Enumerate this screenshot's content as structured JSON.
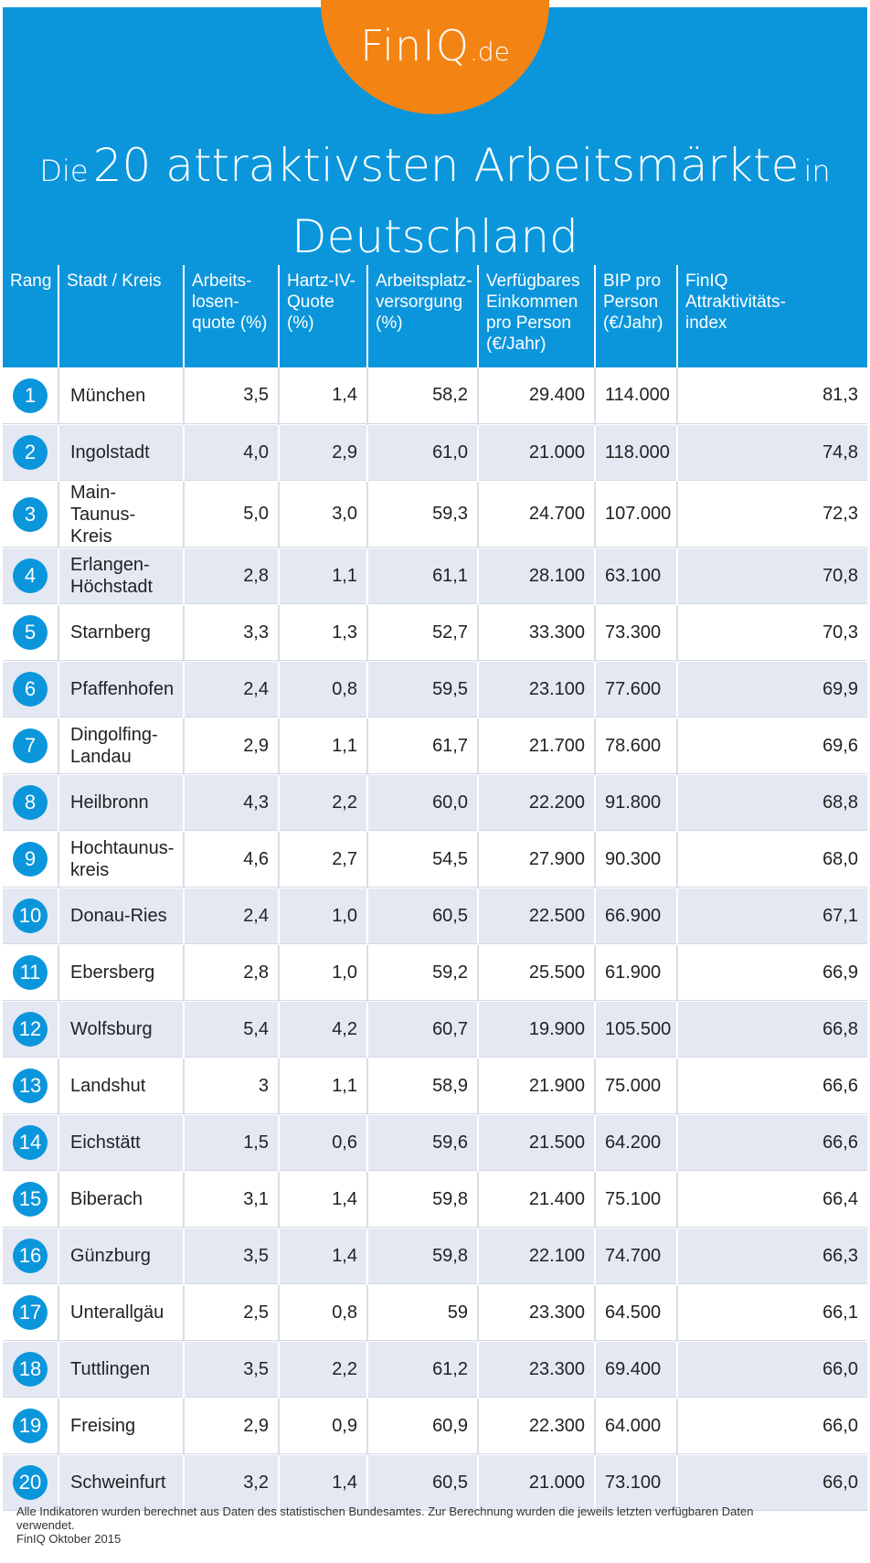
{
  "logo": {
    "brand": "FinIQ",
    "tld": ".de"
  },
  "title": {
    "prefix": "Die",
    "main": "20 attraktivsten Arbeitsmärkte",
    "connector": "in",
    "line2": "Deutschland"
  },
  "colors": {
    "header_blue": "#0b96dc",
    "logo_orange": "#f38313",
    "row_alt": "#e4e8f3"
  },
  "columns": [
    "Rang",
    "Stadt / Kreis",
    "Arbeits-losen-quote (%)",
    "Hartz-IV-Quote (%)",
    "Arbeitsplatz-versorgung (%)",
    "Verfügbares Einkommen pro Person (€/Jahr)",
    "BIP pro Person (€/Jahr)",
    "FinIQ Attraktivitäts-index"
  ],
  "column_lines": [
    [
      "Rang"
    ],
    [
      "Stadt / Kreis"
    ],
    [
      "Arbeits-",
      "losen-",
      "quote (%)"
    ],
    [
      "Hartz-IV-",
      "Quote (%)"
    ],
    [
      "Arbeitsplatz-",
      "versorgung",
      "(%)"
    ],
    [
      "Verfügbares",
      "Einkommen",
      "pro Person",
      "(€/Jahr)"
    ],
    [
      "BIP pro",
      "Person",
      "(€/Jahr)"
    ],
    [
      "FinIQ",
      "Attraktivitäts-",
      "index"
    ]
  ],
  "rows": [
    {
      "rank": "1",
      "name": [
        "München"
      ],
      "alq": "3,5",
      "h4": "1,4",
      "apv": "58,2",
      "eink": "29.400",
      "bip": "114.000",
      "index": "81,3"
    },
    {
      "rank": "2",
      "name": [
        "Ingolstadt"
      ],
      "alq": "4,0",
      "h4": "2,9",
      "apv": "61,0",
      "eink": "21.000",
      "bip": "118.000",
      "index": "74,8"
    },
    {
      "rank": "3",
      "name": [
        "Main-",
        "Taunus-Kreis"
      ],
      "alq": "5,0",
      "h4": "3,0",
      "apv": "59,3",
      "eink": "24.700",
      "bip": "107.000",
      "index": "72,3"
    },
    {
      "rank": "4",
      "name": [
        "Erlangen-",
        "Höchstadt"
      ],
      "alq": "2,8",
      "h4": "1,1",
      "apv": "61,1",
      "eink": "28.100",
      "bip": "63.100",
      "index": "70,8"
    },
    {
      "rank": "5",
      "name": [
        "Starnberg"
      ],
      "alq": "3,3",
      "h4": "1,3",
      "apv": "52,7",
      "eink": "33.300",
      "bip": "73.300",
      "index": "70,3"
    },
    {
      "rank": "6",
      "name": [
        "Pfaffenhofen"
      ],
      "alq": "2,4",
      "h4": "0,8",
      "apv": "59,5",
      "eink": "23.100",
      "bip": "77.600",
      "index": "69,9"
    },
    {
      "rank": "7",
      "name": [
        "Dingolfing-",
        "Landau"
      ],
      "alq": "2,9",
      "h4": "1,1",
      "apv": "61,7",
      "eink": "21.700",
      "bip": "78.600",
      "index": "69,6"
    },
    {
      "rank": "8",
      "name": [
        "Heilbronn"
      ],
      "alq": "4,3",
      "h4": "2,2",
      "apv": "60,0",
      "eink": "22.200",
      "bip": "91.800",
      "index": "68,8"
    },
    {
      "rank": "9",
      "name": [
        "Hochtaunus-",
        "kreis"
      ],
      "alq": "4,6",
      "h4": "2,7",
      "apv": "54,5",
      "eink": "27.900",
      "bip": "90.300",
      "index": "68,0"
    },
    {
      "rank": "10",
      "name": [
        "Donau-Ries"
      ],
      "alq": "2,4",
      "h4": "1,0",
      "apv": "60,5",
      "eink": "22.500",
      "bip": "66.900",
      "index": "67,1"
    },
    {
      "rank": "11",
      "name": [
        "Ebersberg"
      ],
      "alq": "2,8",
      "h4": "1,0",
      "apv": "59,2",
      "eink": "25.500",
      "bip": "61.900",
      "index": "66,9"
    },
    {
      "rank": "12",
      "name": [
        "Wolfsburg"
      ],
      "alq": "5,4",
      "h4": "4,2",
      "apv": "60,7",
      "eink": "19.900",
      "bip": "105.500",
      "index": "66,8"
    },
    {
      "rank": "13",
      "name": [
        "Landshut"
      ],
      "alq": "3",
      "h4": "1,1",
      "apv": "58,9",
      "eink": "21.900",
      "bip": "75.000",
      "index": "66,6"
    },
    {
      "rank": "14",
      "name": [
        "Eichstätt"
      ],
      "alq": "1,5",
      "h4": "0,6",
      "apv": "59,6",
      "eink": "21.500",
      "bip": "64.200",
      "index": "66,6"
    },
    {
      "rank": "15",
      "name": [
        "Biberach"
      ],
      "alq": "3,1",
      "h4": "1,4",
      "apv": "59,8",
      "eink": "21.400",
      "bip": "75.100",
      "index": "66,4"
    },
    {
      "rank": "16",
      "name": [
        "Günzburg"
      ],
      "alq": "3,5",
      "h4": "1,4",
      "apv": "59,8",
      "eink": "22.100",
      "bip": "74.700",
      "index": "66,3"
    },
    {
      "rank": "17",
      "name": [
        "Unterallgäu"
      ],
      "alq": "2,5",
      "h4": "0,8",
      "apv": "59",
      "eink": "23.300",
      "bip": "64.500",
      "index": "66,1"
    },
    {
      "rank": "18",
      "name": [
        "Tuttlingen"
      ],
      "alq": "3,5",
      "h4": "2,2",
      "apv": "61,2",
      "eink": "23.300",
      "bip": "69.400",
      "index": "66,0"
    },
    {
      "rank": "19",
      "name": [
        "Freising"
      ],
      "alq": "2,9",
      "h4": "0,9",
      "apv": "60,9",
      "eink": "22.300",
      "bip": "64.000",
      "index": "66,0"
    },
    {
      "rank": "20",
      "name": [
        "Schweinfurt"
      ],
      "alq": "3,2",
      "h4": "1,4",
      "apv": "60,5",
      "eink": "21.000",
      "bip": "73.100",
      "index": "66,0"
    }
  ],
  "footer": {
    "note_line1": "Alle Indikatoren wurden berechnet aus Daten des statistischen Bundesamtes. Zur Berechnung wurden die jeweils letzten verfügbaren Daten",
    "note_line2": "verwendet.",
    "source": "FinIQ Oktober 2015"
  }
}
